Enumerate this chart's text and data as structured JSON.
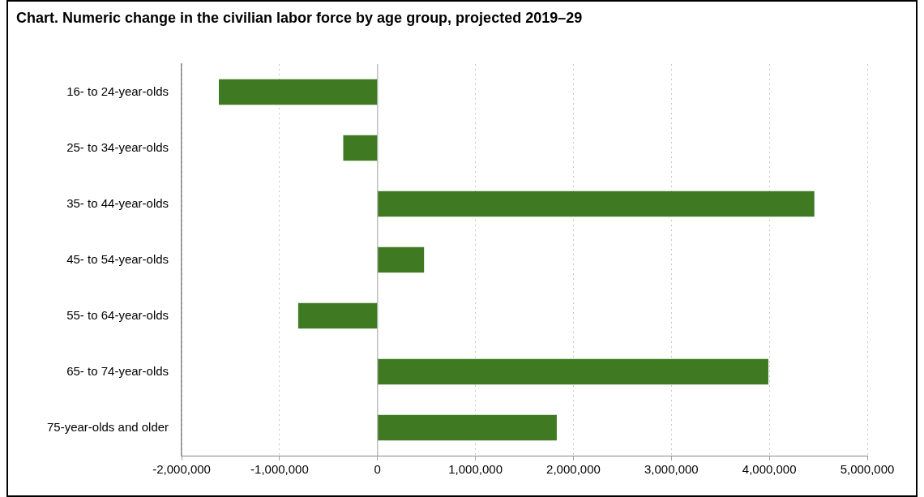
{
  "chart_data": {
    "type": "bar",
    "orientation": "horizontal",
    "title": "Chart. Numeric change in the civilian labor force by age group, projected 2019–29",
    "categories": [
      "16- to 24-year-olds",
      "25- to 34-year-olds",
      "35- to 44-year-olds",
      "45- to 54-year-olds",
      "55- to 64-year-olds",
      "65- to 74-year-olds",
      "75-year-olds and older"
    ],
    "values": [
      -1620000,
      -350000,
      4460000,
      475000,
      -810000,
      3990000,
      1830000
    ],
    "color": "#3f7a22",
    "xlim": [
      -2000000,
      5000000
    ],
    "xticks": [
      {
        "value": -2000000,
        "label": "-2,000,000"
      },
      {
        "value": -1000000,
        "label": "-1,000,000"
      },
      0,
      {
        "value": 1000000,
        "label": "1,000,000"
      },
      {
        "value": 2000000,
        "label": "2,000,000"
      },
      {
        "value": 3000000,
        "label": "3,000,000"
      },
      {
        "value": 4000000,
        "label": "4,000,000"
      },
      {
        "value": 5000000,
        "label": "5,000,000"
      }
    ],
    "ref_lines": [
      {
        "axis": "x",
        "value": 0,
        "color": "#c0c0c0"
      }
    ],
    "grid": "x",
    "legend": false
  }
}
